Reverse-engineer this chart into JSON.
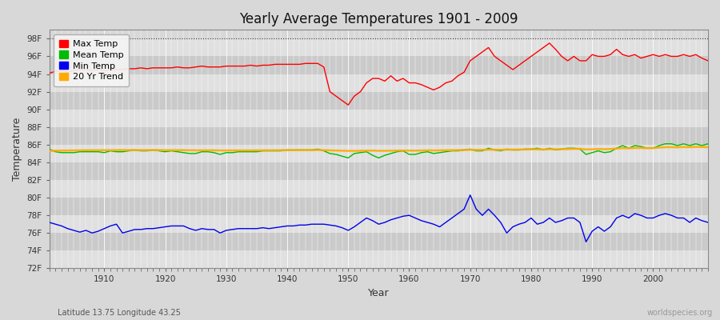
{
  "title": "Yearly Average Temperatures 1901 - 2009",
  "xlabel": "Year",
  "ylabel": "Temperature",
  "bottom_left": "Latitude 13.75 Longitude 43.25",
  "bottom_right": "worldspecies.org",
  "ylim": [
    72,
    99
  ],
  "yticks": [
    72,
    74,
    76,
    78,
    80,
    82,
    84,
    86,
    88,
    90,
    92,
    94,
    96,
    98
  ],
  "ytick_labels": [
    "72F",
    "74F",
    "76F",
    "78F",
    "80F",
    "82F",
    "84F",
    "86F",
    "88F",
    "90F",
    "92F",
    "94F",
    "96F",
    "98F"
  ],
  "xlim": [
    1901,
    2009
  ],
  "bg_color": "#d8d8d8",
  "plot_bg": "#d8d8d8",
  "band_light": "#e8e8e8",
  "band_dark": "#d0d0d0",
  "grid_color": "#ffffff",
  "dashed_line_y": 98,
  "legend_colors": {
    "Max Temp": "#ff0000",
    "Mean Temp": "#00bb00",
    "Min Temp": "#0000ee",
    "20 Yr Trend": "#ffaa00"
  },
  "years": [
    1901,
    1902,
    1903,
    1904,
    1905,
    1906,
    1907,
    1908,
    1909,
    1910,
    1911,
    1912,
    1913,
    1914,
    1915,
    1916,
    1917,
    1918,
    1919,
    1920,
    1921,
    1922,
    1923,
    1924,
    1925,
    1926,
    1927,
    1928,
    1929,
    1930,
    1931,
    1932,
    1933,
    1934,
    1935,
    1936,
    1937,
    1938,
    1939,
    1940,
    1941,
    1942,
    1943,
    1944,
    1945,
    1946,
    1947,
    1948,
    1949,
    1950,
    1951,
    1952,
    1953,
    1954,
    1955,
    1956,
    1957,
    1958,
    1959,
    1960,
    1961,
    1962,
    1963,
    1964,
    1965,
    1966,
    1967,
    1968,
    1969,
    1970,
    1971,
    1972,
    1973,
    1974,
    1975,
    1976,
    1977,
    1978,
    1979,
    1980,
    1981,
    1982,
    1983,
    1984,
    1985,
    1986,
    1987,
    1988,
    1989,
    1990,
    1991,
    1992,
    1993,
    1994,
    1995,
    1996,
    1997,
    1998,
    1999,
    2000,
    2001,
    2002,
    2003,
    2004,
    2005,
    2006,
    2007,
    2008,
    2009
  ],
  "max_temp": [
    94.1,
    94.3,
    94.4,
    94.2,
    94.4,
    94.5,
    94.5,
    94.4,
    94.5,
    94.4,
    94.5,
    94.5,
    94.5,
    94.6,
    94.6,
    94.7,
    94.6,
    94.7,
    94.7,
    94.7,
    94.7,
    94.8,
    94.7,
    94.7,
    94.8,
    94.9,
    94.8,
    94.8,
    94.8,
    94.9,
    94.9,
    94.9,
    94.9,
    95.0,
    94.9,
    95.0,
    95.0,
    95.1,
    95.1,
    95.1,
    95.1,
    95.1,
    95.2,
    95.2,
    95.2,
    94.8,
    92.0,
    91.5,
    91.0,
    90.5,
    91.5,
    92.0,
    93.0,
    93.5,
    93.5,
    93.2,
    93.8,
    93.2,
    93.5,
    93.0,
    93.0,
    92.8,
    92.5,
    92.2,
    92.5,
    93.0,
    93.2,
    93.8,
    94.2,
    95.5,
    96.0,
    96.5,
    97.0,
    96.0,
    95.5,
    95.0,
    94.5,
    95.0,
    95.5,
    96.0,
    96.5,
    97.0,
    97.5,
    96.8,
    96.0,
    95.5,
    96.0,
    95.5,
    95.5,
    96.2,
    96.0,
    96.0,
    96.2,
    96.8,
    96.2,
    96.0,
    96.2,
    95.8,
    96.0,
    96.2,
    96.0,
    96.2,
    96.0,
    96.0,
    96.2,
    96.0,
    96.2,
    95.8,
    95.5
  ],
  "mean_temp": [
    85.5,
    85.2,
    85.1,
    85.1,
    85.1,
    85.2,
    85.2,
    85.2,
    85.2,
    85.1,
    85.3,
    85.2,
    85.2,
    85.3,
    85.4,
    85.3,
    85.3,
    85.4,
    85.3,
    85.2,
    85.3,
    85.2,
    85.1,
    85.0,
    85.0,
    85.2,
    85.2,
    85.1,
    84.9,
    85.1,
    85.1,
    85.2,
    85.2,
    85.2,
    85.2,
    85.3,
    85.3,
    85.3,
    85.3,
    85.4,
    85.4,
    85.4,
    85.4,
    85.4,
    85.5,
    85.3,
    85.0,
    84.9,
    84.7,
    84.5,
    85.0,
    85.1,
    85.2,
    84.8,
    84.5,
    84.8,
    85.0,
    85.2,
    85.3,
    84.9,
    84.9,
    85.1,
    85.2,
    85.0,
    85.1,
    85.2,
    85.3,
    85.3,
    85.4,
    85.5,
    85.3,
    85.3,
    85.6,
    85.4,
    85.3,
    85.5,
    85.4,
    85.4,
    85.5,
    85.5,
    85.6,
    85.4,
    85.6,
    85.4,
    85.5,
    85.6,
    85.6,
    85.5,
    84.9,
    85.1,
    85.3,
    85.1,
    85.2,
    85.6,
    85.9,
    85.6,
    85.9,
    85.8,
    85.6,
    85.6,
    85.9,
    86.1,
    86.1,
    85.9,
    86.1,
    85.9,
    86.1,
    85.9,
    86.1
  ],
  "min_temp": [
    77.2,
    77.0,
    76.8,
    76.5,
    76.3,
    76.1,
    76.3,
    76.0,
    76.2,
    76.5,
    76.8,
    77.0,
    76.0,
    76.2,
    76.4,
    76.4,
    76.5,
    76.5,
    76.6,
    76.7,
    76.8,
    76.8,
    76.8,
    76.5,
    76.3,
    76.5,
    76.4,
    76.4,
    76.0,
    76.3,
    76.4,
    76.5,
    76.5,
    76.5,
    76.5,
    76.6,
    76.5,
    76.6,
    76.7,
    76.8,
    76.8,
    76.9,
    76.9,
    77.0,
    77.0,
    77.0,
    76.9,
    76.8,
    76.6,
    76.3,
    76.7,
    77.2,
    77.7,
    77.4,
    77.0,
    77.2,
    77.5,
    77.7,
    77.9,
    78.0,
    77.7,
    77.4,
    77.2,
    77.0,
    76.7,
    77.2,
    77.7,
    78.2,
    78.7,
    80.3,
    78.7,
    78.0,
    78.7,
    78.0,
    77.2,
    76.0,
    76.7,
    77.0,
    77.2,
    77.7,
    77.0,
    77.2,
    77.7,
    77.2,
    77.4,
    77.7,
    77.7,
    77.2,
    75.0,
    76.2,
    76.7,
    76.2,
    76.7,
    77.7,
    78.0,
    77.7,
    78.2,
    78.0,
    77.7,
    77.7,
    78.0,
    78.2,
    78.0,
    77.7,
    77.7,
    77.2,
    77.7,
    77.4,
    77.2
  ],
  "trend": [
    85.3,
    85.32,
    85.33,
    85.34,
    85.35,
    85.36,
    85.37,
    85.37,
    85.37,
    85.38,
    85.38,
    85.39,
    85.39,
    85.39,
    85.39,
    85.39,
    85.39,
    85.39,
    85.39,
    85.38,
    85.38,
    85.38,
    85.38,
    85.37,
    85.36,
    85.36,
    85.36,
    85.36,
    85.35,
    85.35,
    85.35,
    85.35,
    85.35,
    85.35,
    85.36,
    85.36,
    85.37,
    85.37,
    85.38,
    85.38,
    85.38,
    85.39,
    85.39,
    85.39,
    85.4,
    85.38,
    85.36,
    85.34,
    85.32,
    85.3,
    85.3,
    85.31,
    85.33,
    85.33,
    85.31,
    85.31,
    85.32,
    85.33,
    85.34,
    85.33,
    85.33,
    85.34,
    85.36,
    85.35,
    85.36,
    85.37,
    85.38,
    85.39,
    85.4,
    85.42,
    85.41,
    85.41,
    85.44,
    85.43,
    85.42,
    85.44,
    85.44,
    85.45,
    85.46,
    85.48,
    85.48,
    85.46,
    85.49,
    85.48,
    85.5,
    85.51,
    85.53,
    85.53,
    85.46,
    85.48,
    85.51,
    85.49,
    85.51,
    85.56,
    85.61,
    85.59,
    85.63,
    85.63,
    85.61,
    85.62,
    85.67,
    85.72,
    85.72,
    85.7,
    85.74,
    85.72,
    85.75,
    85.74,
    85.72
  ]
}
